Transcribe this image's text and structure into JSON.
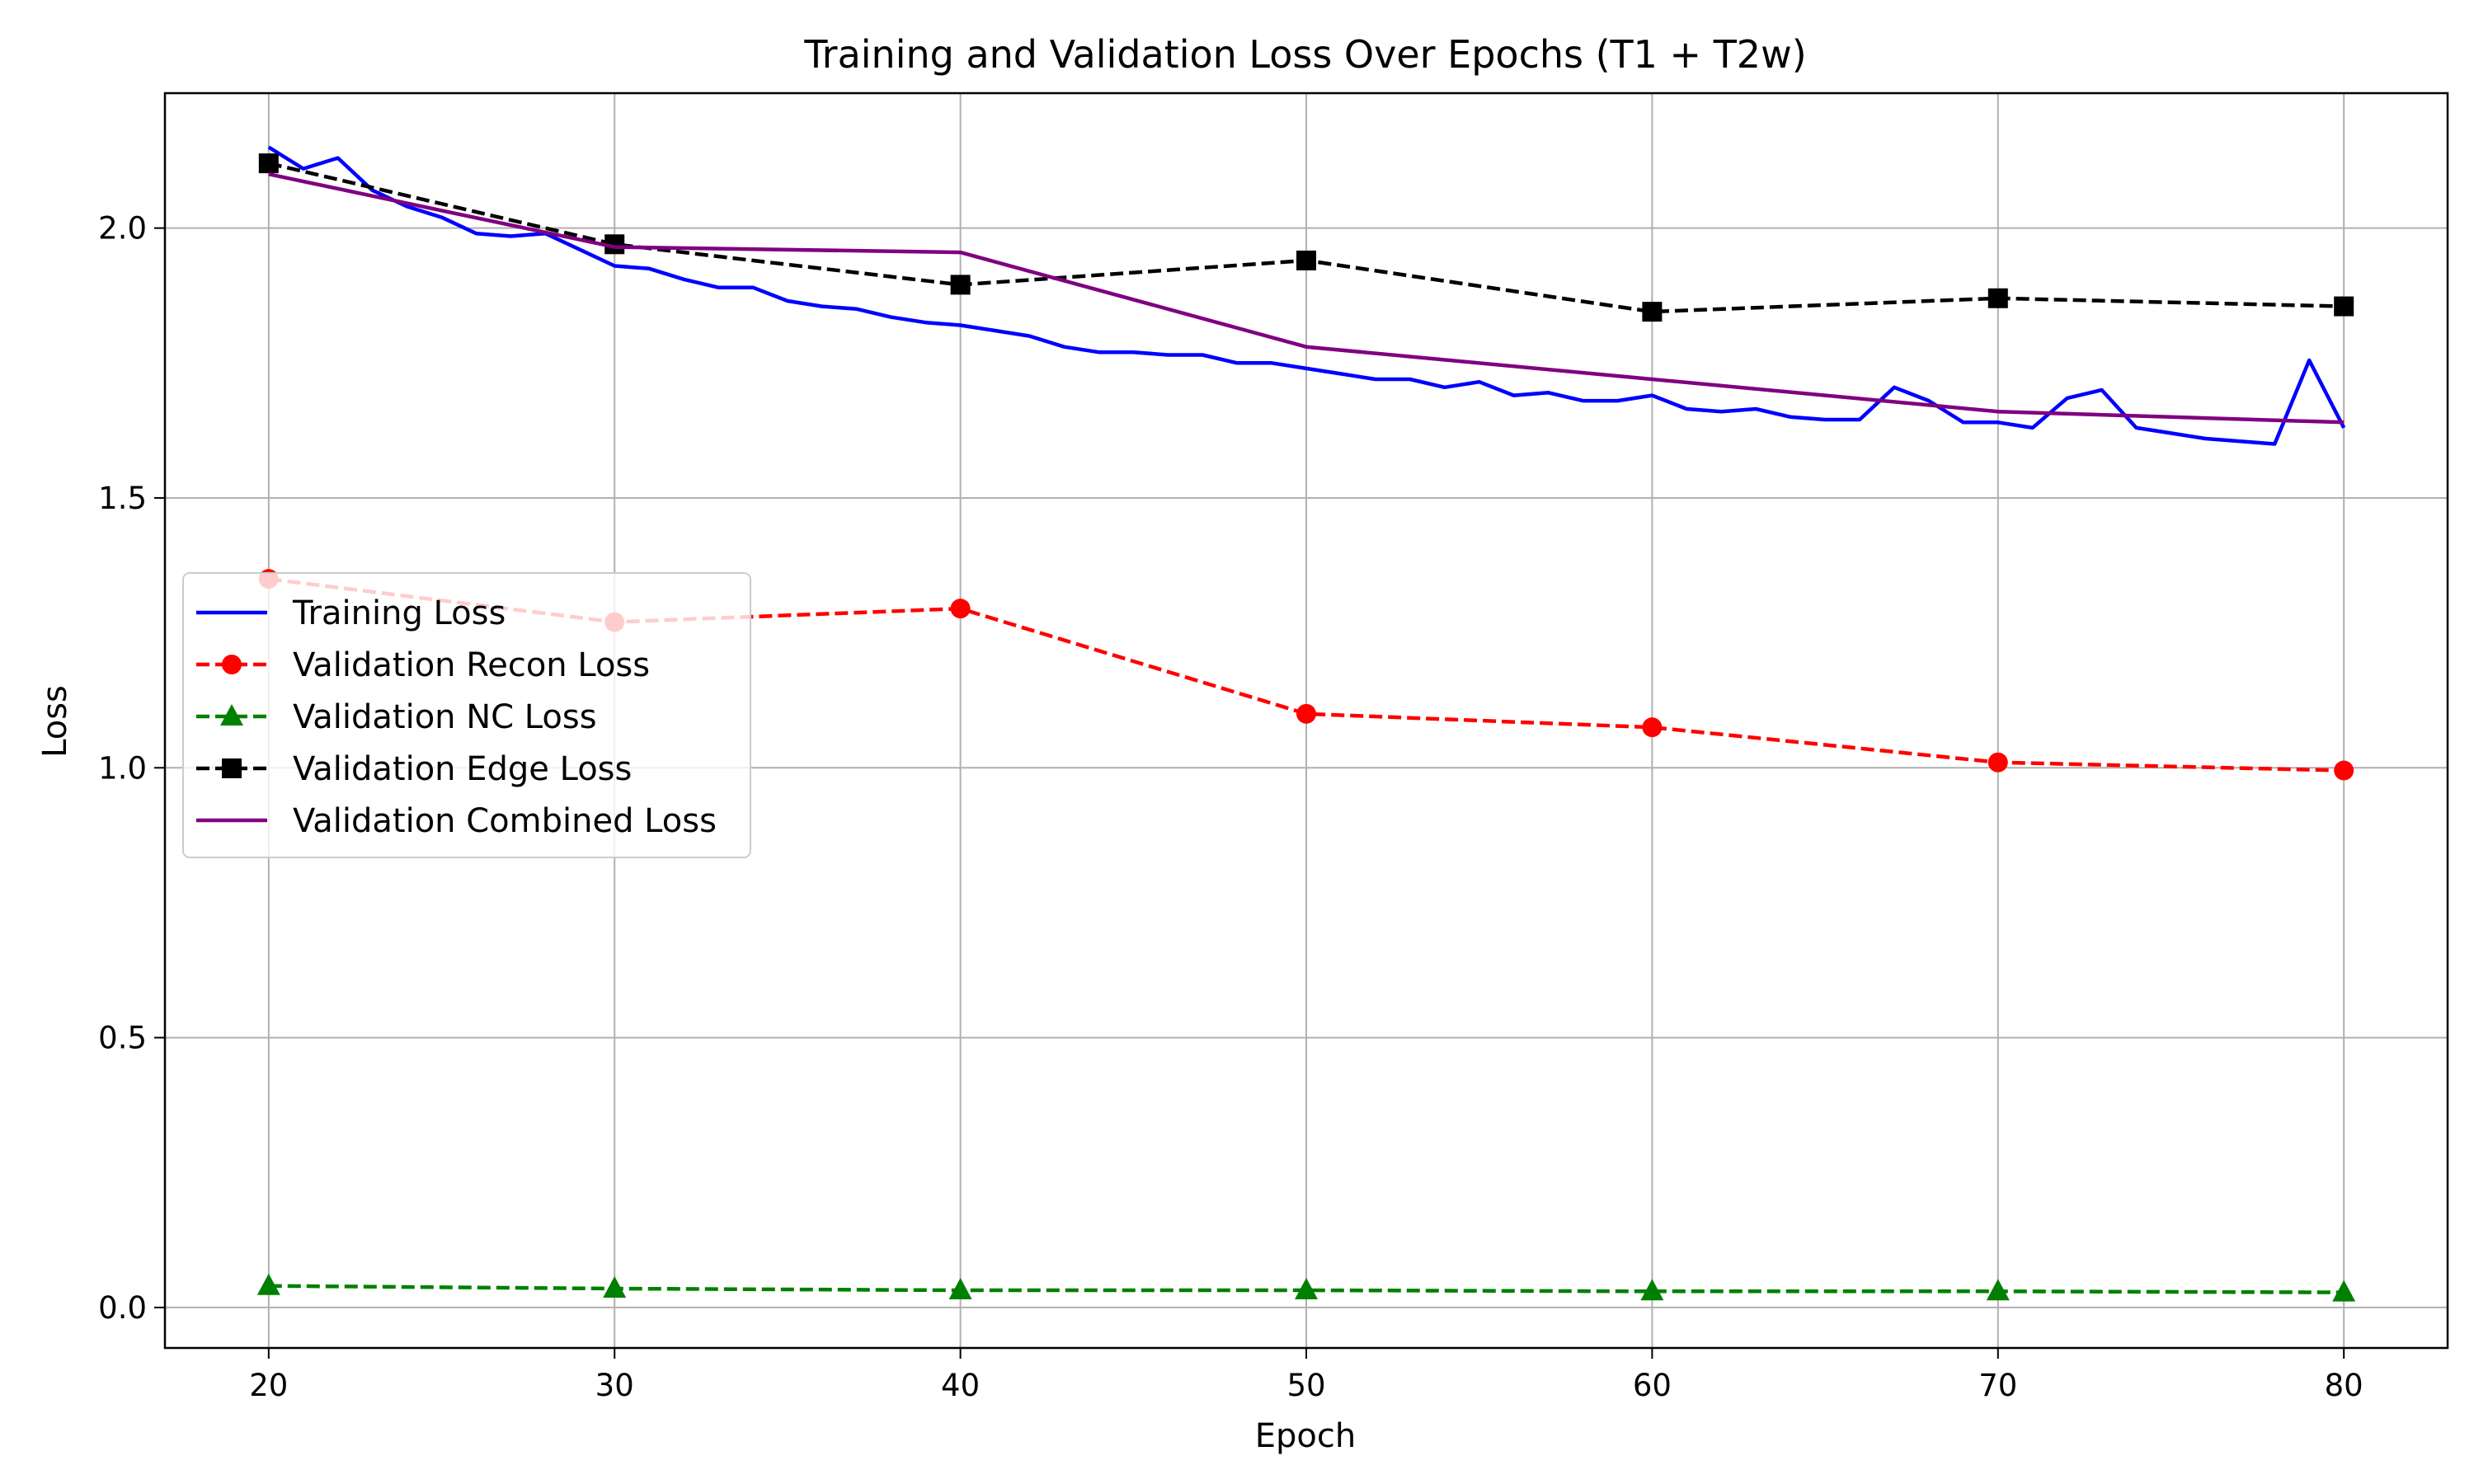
{
  "chart_data": {
    "type": "line",
    "title": "Training and Validation Loss Over Epochs (T1 + T2w)",
    "xlabel": "Epoch",
    "ylabel": "Loss",
    "xlim": [
      17,
      83
    ],
    "ylim": [
      -0.075,
      2.25
    ],
    "xticks": [
      20,
      30,
      40,
      50,
      60,
      70,
      80
    ],
    "yticks": [
      0.0,
      0.5,
      1.0,
      1.5,
      2.0
    ],
    "xtick_labels": [
      "20",
      "30",
      "40",
      "50",
      "60",
      "70",
      "80"
    ],
    "ytick_labels": [
      "0.0",
      "0.5",
      "1.0",
      "1.5",
      "2.0"
    ],
    "grid": true,
    "legend_position": "center-left",
    "series": [
      {
        "name": "Training Loss",
        "color": "#0000ff",
        "style": "solid",
        "marker": "none",
        "x": [
          20,
          21,
          22,
          23,
          24,
          25,
          26,
          27,
          28,
          29,
          30,
          31,
          32,
          33,
          34,
          35,
          36,
          37,
          38,
          39,
          40,
          41,
          42,
          43,
          44,
          45,
          46,
          47,
          48,
          49,
          50,
          51,
          52,
          53,
          54,
          55,
          56,
          57,
          58,
          59,
          60,
          61,
          62,
          63,
          64,
          65,
          66,
          67,
          68,
          69,
          70,
          71,
          72,
          73,
          74,
          75,
          76,
          77,
          78,
          79,
          80
        ],
        "y": [
          2.15,
          2.11,
          2.13,
          2.07,
          2.04,
          2.02,
          1.99,
          1.985,
          1.99,
          1.96,
          1.93,
          1.925,
          1.905,
          1.89,
          1.89,
          1.865,
          1.855,
          1.85,
          1.835,
          1.825,
          1.82,
          1.81,
          1.8,
          1.78,
          1.77,
          1.77,
          1.765,
          1.765,
          1.75,
          1.75,
          1.74,
          1.73,
          1.72,
          1.72,
          1.705,
          1.715,
          1.69,
          1.695,
          1.68,
          1.68,
          1.69,
          1.665,
          1.66,
          1.665,
          1.65,
          1.645,
          1.645,
          1.705,
          1.68,
          1.64,
          1.64,
          1.63,
          1.685,
          1.7,
          1.63,
          1.62,
          1.61,
          1.605,
          1.6,
          1.755,
          1.63
        ]
      },
      {
        "name": "Validation Recon Loss",
        "color": "#ff0000",
        "style": "dashed",
        "marker": "circle",
        "x": [
          20,
          30,
          40,
          50,
          60,
          70,
          80
        ],
        "y": [
          1.35,
          1.27,
          1.295,
          1.1,
          1.075,
          1.01,
          0.995
        ]
      },
      {
        "name": "Validation NC Loss",
        "color": "#008000",
        "style": "dashed",
        "marker": "triangle",
        "x": [
          20,
          30,
          40,
          50,
          60,
          70,
          80
        ],
        "y": [
          0.04,
          0.035,
          0.032,
          0.032,
          0.03,
          0.03,
          0.028
        ]
      },
      {
        "name": "Validation Edge Loss",
        "color": "#000000",
        "style": "dashed",
        "marker": "square",
        "x": [
          20,
          30,
          40,
          50,
          60,
          70,
          80
        ],
        "y": [
          2.12,
          1.97,
          1.895,
          1.94,
          1.845,
          1.87,
          1.855
        ]
      },
      {
        "name": "Validation Combined Loss",
        "color": "#800080",
        "style": "solid",
        "marker": "none",
        "x": [
          20,
          30,
          40,
          50,
          60,
          70,
          80
        ],
        "y": [
          2.1,
          1.965,
          1.955,
          1.78,
          1.72,
          1.66,
          1.64
        ]
      }
    ]
  }
}
